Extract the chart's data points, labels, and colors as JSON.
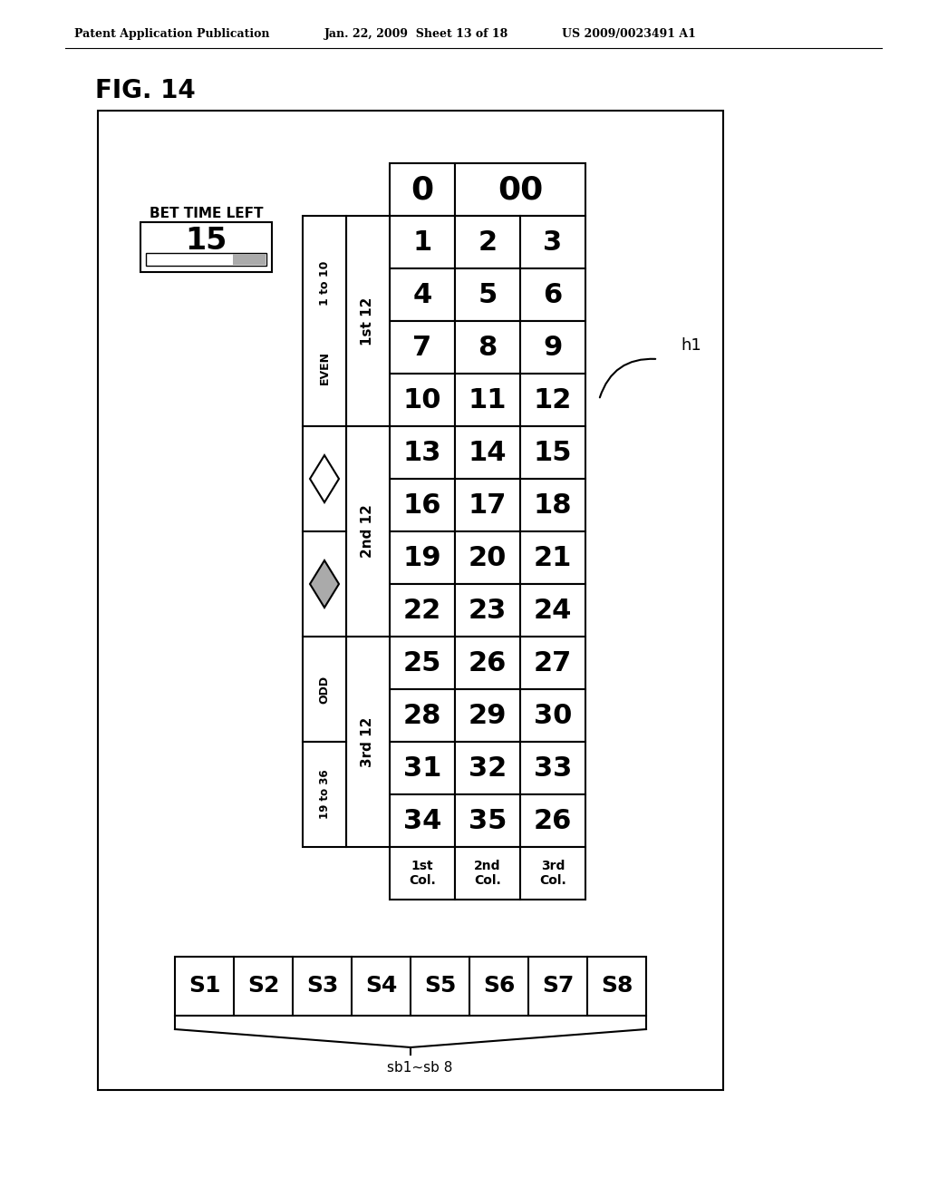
{
  "bg_color": "#ffffff",
  "header_text_left": "Patent Application Publication",
  "header_text_mid": "Jan. 22, 2009  Sheet 13 of 18",
  "header_text_right": "US 2009/0023491 A1",
  "fig_label": "FIG. 14",
  "bet_time_left_label": "BET TIME LEFT",
  "bet_time_value": "15",
  "number_rows": [
    [
      "1",
      "2",
      "3"
    ],
    [
      "4",
      "5",
      "6"
    ],
    [
      "7",
      "8",
      "9"
    ],
    [
      "10",
      "11",
      "12"
    ],
    [
      "13",
      "14",
      "15"
    ],
    [
      "16",
      "17",
      "18"
    ],
    [
      "19",
      "20",
      "21"
    ],
    [
      "22",
      "23",
      "24"
    ],
    [
      "25",
      "26",
      "27"
    ],
    [
      "28",
      "29",
      "30"
    ],
    [
      "31",
      "32",
      "33"
    ],
    [
      "34",
      "35",
      "26"
    ]
  ],
  "col_labels": [
    "1st\nCol.",
    "2nd\nCol.",
    "3rd\nCol."
  ],
  "station_labels": [
    "S1",
    "S2",
    "S3",
    "S4",
    "S5",
    "S6",
    "S7",
    "S8"
  ],
  "bracket_label": "sb1~sb 8",
  "h1_label": "h1"
}
